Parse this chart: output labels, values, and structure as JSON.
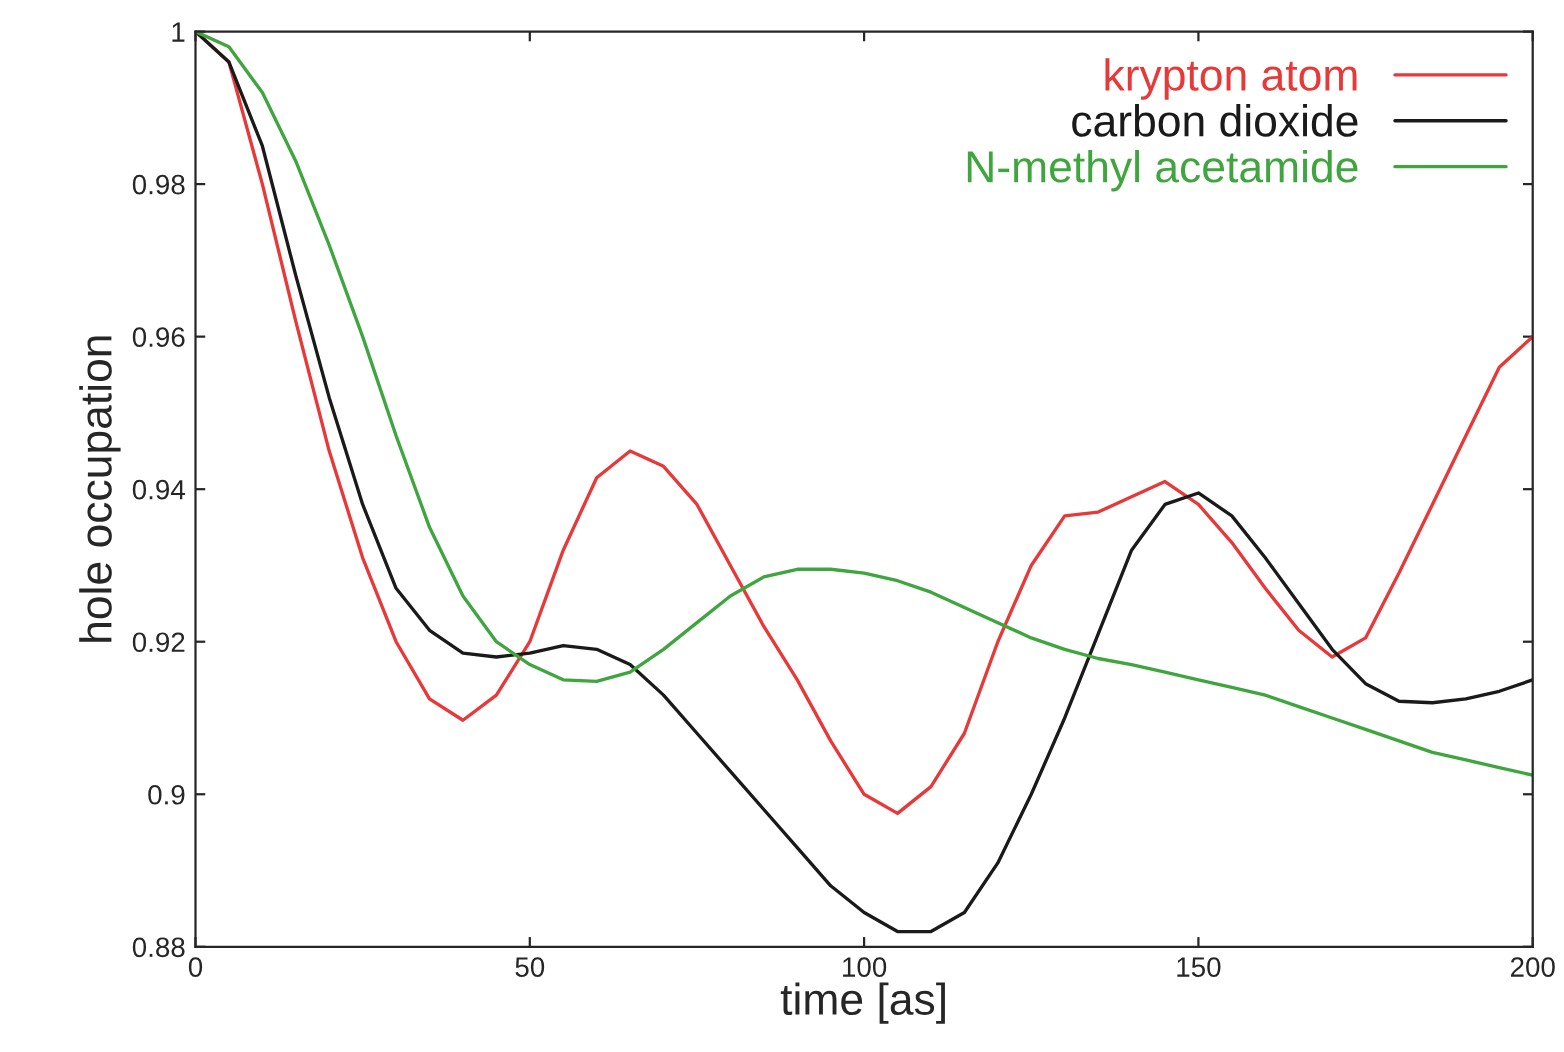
{
  "chart_data": {
    "type": "line",
    "xlabel": "time [as]",
    "ylabel": "hole occupation",
    "x": [
      0,
      5,
      10,
      15,
      20,
      25,
      30,
      35,
      40,
      45,
      50,
      55,
      60,
      65,
      70,
      75,
      80,
      85,
      90,
      95,
      100,
      105,
      110,
      115,
      120,
      125,
      130,
      135,
      140,
      145,
      150,
      155,
      160,
      165,
      170,
      175,
      180,
      185,
      190,
      195,
      200
    ],
    "series": [
      {
        "name": "krypton atom",
        "color": "#e8393a",
        "values": [
          1,
          0.996,
          0.98,
          0.962,
          0.945,
          0.931,
          0.92,
          0.9125,
          0.9097,
          0.913,
          0.92,
          0.932,
          0.9415,
          0.945,
          0.943,
          0.938,
          0.93,
          0.922,
          0.915,
          0.907,
          0.9,
          0.8975,
          0.901,
          0.908,
          0.92,
          0.93,
          0.9365,
          0.937,
          0.939,
          0.941,
          0.938,
          0.933,
          0.927,
          0.9215,
          0.918,
          0.9205,
          0.929,
          0.938,
          0.947,
          0.956,
          0.96
        ]
      },
      {
        "name": "carbon dioxide",
        "color": "#1a1a1a",
        "values": [
          1,
          0.996,
          0.985,
          0.968,
          0.952,
          0.938,
          0.927,
          0.9215,
          0.9185,
          0.918,
          0.9185,
          0.9195,
          0.919,
          0.917,
          0.913,
          0.908,
          0.903,
          0.898,
          0.893,
          0.888,
          0.8845,
          0.882,
          0.882,
          0.8845,
          0.891,
          0.9,
          0.91,
          0.921,
          0.932,
          0.938,
          0.9395,
          0.9365,
          0.931,
          0.925,
          0.919,
          0.9145,
          0.9122,
          0.912,
          0.9125,
          0.9135,
          0.915
        ]
      },
      {
        "name": "N-methyl acetamide",
        "color": "#3fa63f",
        "values": [
          1,
          0.998,
          0.992,
          0.983,
          0.972,
          0.96,
          0.947,
          0.935,
          0.926,
          0.92,
          0.917,
          0.915,
          0.9148,
          0.916,
          0.919,
          0.9225,
          0.926,
          0.9285,
          0.9295,
          0.9295,
          0.929,
          0.928,
          0.9265,
          0.9245,
          0.9225,
          0.9205,
          0.919,
          0.9178,
          0.917,
          0.916,
          0.915,
          0.914,
          0.913,
          0.9115,
          0.91,
          0.9085,
          0.907,
          0.9055,
          0.9045,
          0.9035,
          0.9025
        ]
      }
    ],
    "xlim": [
      0,
      200
    ],
    "xticks": [
      0,
      50,
      100,
      150,
      200
    ],
    "ylim": [
      0.88,
      1
    ],
    "yticks": [
      0.88,
      0.9,
      0.92,
      0.94,
      0.96,
      0.98,
      1
    ],
    "grid": false,
    "legend": "top right",
    "marker": "none",
    "line_style": "solid"
  }
}
